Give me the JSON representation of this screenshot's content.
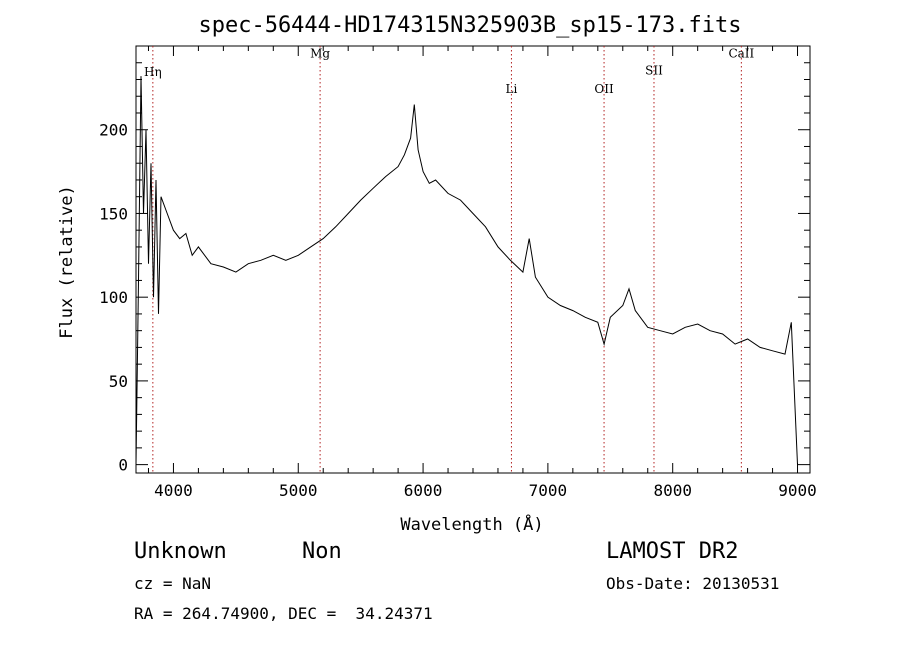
{
  "chart_data": {
    "type": "line",
    "title": "spec-56444-HD174315N325903B_sp15-173.fits",
    "xlabel": "Wavelength (Å)",
    "ylabel": "Flux (relative)",
    "xlim": [
      3700,
      9100
    ],
    "ylim": [
      -5,
      250
    ],
    "x_ticks": [
      4000,
      5000,
      6000,
      7000,
      8000,
      9000
    ],
    "x_tick_labels": [
      "4000",
      "5000",
      "6000",
      "7000",
      "8000",
      "9000"
    ],
    "y_ticks": [
      0,
      50,
      100,
      150,
      200
    ],
    "y_tick_labels": [
      "0",
      "50",
      "100",
      "150",
      "200"
    ],
    "grid": false,
    "line_color": "#000000",
    "marker_color": "#b22222",
    "series": [
      {
        "x": [
          3700,
          3720,
          3740,
          3760,
          3780,
          3800,
          3820,
          3840,
          3860,
          3880,
          3900,
          3950,
          4000,
          4050,
          4100,
          4150,
          4200,
          4300,
          4400,
          4500,
          4600,
          4700,
          4800,
          4900,
          5000,
          5100,
          5200,
          5300,
          5400,
          5500,
          5600,
          5700,
          5800,
          5850,
          5900,
          5930,
          5960,
          6000,
          6050,
          6100,
          6200,
          6300,
          6400,
          6500,
          6600,
          6700,
          6800,
          6850,
          6900,
          7000,
          7100,
          7200,
          7300,
          7400,
          7450,
          7500,
          7600,
          7650,
          7700,
          7800,
          7900,
          8000,
          8100,
          8200,
          8300,
          8400,
          8500,
          8600,
          8700,
          8800,
          8900,
          8950,
          9000
        ],
        "y": [
          0,
          110,
          232,
          150,
          200,
          120,
          180,
          100,
          170,
          90,
          160,
          150,
          140,
          135,
          138,
          125,
          130,
          120,
          118,
          115,
          120,
          122,
          125,
          122,
          125,
          130,
          135,
          142,
          150,
          158,
          165,
          172,
          178,
          185,
          195,
          215,
          188,
          175,
          168,
          170,
          162,
          158,
          150,
          142,
          130,
          122,
          115,
          135,
          112,
          100,
          95,
          92,
          88,
          85,
          72,
          88,
          95,
          105,
          92,
          82,
          80,
          78,
          82,
          84,
          80,
          78,
          72,
          75,
          70,
          68,
          66,
          85,
          0
        ]
      }
    ],
    "line_markers": [
      {
        "label": "Hη",
        "x": 3835,
        "label_y": 232
      },
      {
        "label": "Mg",
        "x": 5175,
        "label_y": 243
      },
      {
        "label": "Li",
        "x": 6708,
        "label_y": 222
      },
      {
        "label": "OII",
        "x": 7450,
        "label_y": 222
      },
      {
        "label": "SII",
        "x": 7850,
        "label_y": 233
      },
      {
        "label": "CaII",
        "x": 8550,
        "label_y": 243
      }
    ]
  },
  "info": {
    "object_class": "Unknown",
    "object_subclass": "Non",
    "survey": "LAMOST DR2",
    "cz": "cz = NaN",
    "obs_date": "Obs-Date: 20130531",
    "coords": "RA = 264.74900, DEC =  34.24371"
  }
}
